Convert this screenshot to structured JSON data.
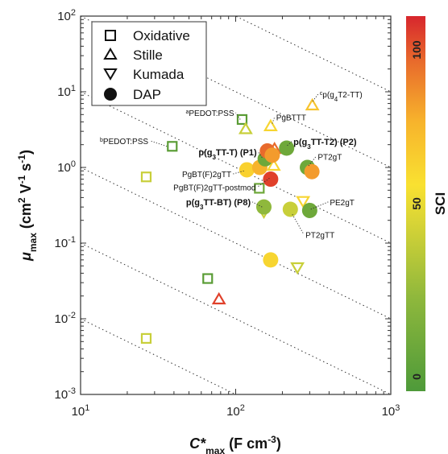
{
  "chart_data": {
    "type": "scatter",
    "x_scale": "log",
    "y_scale": "log",
    "xlim": [
      10,
      1000
    ],
    "ylim": [
      0.001,
      100
    ],
    "xlabel_parts": {
      "sym": "C*",
      "sub": "max",
      "rest": " (F cm",
      "sup": "-3",
      "close": ")"
    },
    "ylabel_parts": {
      "sym": "μ",
      "sub": "max",
      "rest": " (cm",
      "sup1": "2",
      "mid": " V",
      "sup2": "-1",
      "mid2": " s",
      "sup3": "-1",
      "close": ")"
    },
    "x_ticks": [
      {
        "value": 10,
        "base": "10",
        "exp": "1"
      },
      {
        "value": 100,
        "base": "10",
        "exp": "2"
      },
      {
        "value": 1000,
        "base": "10",
        "exp": "3"
      }
    ],
    "y_ticks": [
      {
        "value": 0.001,
        "base": "10",
        "exp": "-3"
      },
      {
        "value": 0.01,
        "base": "10",
        "exp": "-2"
      },
      {
        "value": 0.1,
        "base": "10",
        "exp": "-1"
      },
      {
        "value": 1,
        "base": "10",
        "exp": "0"
      },
      {
        "value": 10,
        "base": "10",
        "exp": "1"
      },
      {
        "value": 100,
        "base": "10",
        "exp": "2"
      }
    ],
    "grid": false,
    "legend_placement": "top-left",
    "legend": [
      {
        "marker": "square",
        "label": "Oxidative"
      },
      {
        "marker": "triangle-up",
        "label": "Stille"
      },
      {
        "marker": "triangle-down",
        "label": "Kumada"
      },
      {
        "marker": "circle",
        "label": "DAP"
      }
    ],
    "colorbar": {
      "label": "SCI",
      "range": [
        0,
        100
      ],
      "ticks": [
        "0",
        "50",
        "100"
      ],
      "colors": [
        "#d7262d",
        "#e86a2c",
        "#f7b32c",
        "#f9e131",
        "#c8cf3a",
        "#7cb342",
        "#4e9a3a"
      ]
    },
    "guide_lines": {
      "style": "dotted",
      "products": [
        0.1,
        1,
        10,
        100,
        1000,
        10000
      ]
    },
    "points": [
      {
        "marker": "square",
        "x": 26.5,
        "y": 0.0055,
        "color": "#c8cf3a"
      },
      {
        "marker": "square",
        "x": 66,
        "y": 0.034,
        "color": "#5a9c35"
      },
      {
        "marker": "square",
        "x": 26.5,
        "y": 0.75,
        "color": "#c8cf3a"
      },
      {
        "marker": "square",
        "x": 39,
        "y": 1.9,
        "color": "#5a9c35"
      },
      {
        "marker": "square",
        "x": 110,
        "y": 4.3,
        "color": "#5a9c35"
      },
      {
        "marker": "square",
        "x": 142,
        "y": 0.53,
        "color": "#6ea83a"
      },
      {
        "marker": "triangle-up",
        "x": 78,
        "y": 0.018,
        "color": "#e0402a"
      },
      {
        "marker": "triangle-up",
        "x": 116,
        "y": 3.2,
        "color": "#c8cf3a"
      },
      {
        "marker": "triangle-up",
        "x": 168,
        "y": 3.5,
        "color": "#f7d531"
      },
      {
        "marker": "triangle-up",
        "x": 178,
        "y": 1.75,
        "color": "#e86a2c"
      },
      {
        "marker": "triangle-up",
        "x": 176,
        "y": 1.05,
        "color": "#f7d531"
      },
      {
        "marker": "triangle-up",
        "x": 312,
        "y": 6.6,
        "color": "#f7c42f"
      },
      {
        "marker": "triangle-down",
        "x": 272,
        "y": 0.36,
        "color": "#f7d531"
      },
      {
        "marker": "triangle-down",
        "x": 250,
        "y": 0.048,
        "color": "#c8cf3a"
      },
      {
        "marker": "triangle-down",
        "x": 152,
        "y": 0.26,
        "color": "#c8cf3a"
      },
      {
        "marker": "circle",
        "x": 118,
        "y": 0.93,
        "color": "#f9d12f"
      },
      {
        "marker": "circle",
        "x": 143,
        "y": 1.0,
        "color": "#f7b32c"
      },
      {
        "marker": "circle",
        "x": 155,
        "y": 1.3,
        "color": "#6ea83a"
      },
      {
        "marker": "circle",
        "x": 160,
        "y": 1.65,
        "color": "#e86a2c"
      },
      {
        "marker": "circle",
        "x": 168,
        "y": 0.7,
        "color": "#e0402a"
      },
      {
        "marker": "circle",
        "x": 172,
        "y": 1.45,
        "color": "#f39b2d"
      },
      {
        "marker": "circle",
        "x": 213,
        "y": 1.8,
        "color": "#6ea83a"
      },
      {
        "marker": "circle",
        "x": 290,
        "y": 1.0,
        "color": "#6ea83a"
      },
      {
        "marker": "circle",
        "x": 310,
        "y": 0.88,
        "color": "#f39b2d"
      },
      {
        "marker": "circle",
        "x": 152,
        "y": 0.3,
        "color": "#8fb83c"
      },
      {
        "marker": "circle",
        "x": 225,
        "y": 0.28,
        "color": "#c8cf3a"
      },
      {
        "marker": "circle",
        "x": 300,
        "y": 0.27,
        "color": "#6ea83a"
      },
      {
        "marker": "circle",
        "x": 168,
        "y": 0.06,
        "color": "#f7d531"
      }
    ],
    "annotations": [
      {
        "id": "ann-c-p-g4t2tt",
        "pre_sup": "c",
        "text": "p(g",
        "sub": "4",
        "post": "T2-TT)",
        "bold": false,
        "x": 314,
        "y": 7.5,
        "lx": 340,
        "ly": 9.3,
        "anchor": "start"
      },
      {
        "id": "ann-a-pedotpss",
        "pre_sup": "a",
        "text": "PEDOT:PSS",
        "bold": false,
        "x": 107,
        "y": 4.3,
        "lx": 100,
        "ly": 5.3,
        "anchor": "end"
      },
      {
        "id": "ann-pgbttt",
        "text": "PgBTTT",
        "bold": false,
        "x": 172,
        "y": 3.8,
        "lx": 178,
        "ly": 4.6,
        "anchor": "start"
      },
      {
        "id": "ann-b-pedotpss",
        "pre_sup": "b",
        "text": "PEDOT:PSS",
        "bold": false,
        "x": 36,
        "y": 1.9,
        "lx": 28,
        "ly": 2.25,
        "anchor": "end"
      },
      {
        "id": "ann-p-g3tt-t-p1",
        "text": "p(g",
        "sub": "3",
        "post": "TT-T) (P1)",
        "bold": true,
        "x": 148,
        "y": 1.35,
        "lx": 140,
        "ly": 1.6,
        "anchor": "end"
      },
      {
        "id": "ann-p-g3tt-t2-p2",
        "text": "p(g",
        "sub": "3",
        "post": "TT-T2) (P2)",
        "bold": true,
        "x": 215,
        "y": 1.95,
        "lx": 230,
        "ly": 2.2,
        "anchor": "start"
      },
      {
        "id": "ann-pgbt-f-2gtt",
        "text": "PgBT(F)2gTT",
        "bold": false,
        "x": 113,
        "y": 0.9,
        "lx": 96,
        "ly": 0.82,
        "anchor": "end"
      },
      {
        "id": "ann-pt2gt",
        "text": "PT2gT",
        "bold": false,
        "x": 295,
        "y": 1.05,
        "lx": 330,
        "ly": 1.4,
        "anchor": "start"
      },
      {
        "id": "ann-pgbt-f-2gtt-postmod",
        "text": "PgBT(F)2gTT-postmod",
        "bold": false,
        "x": 165,
        "y": 0.72,
        "lx": 138,
        "ly": 0.55,
        "anchor": "end"
      },
      {
        "id": "ann-p-g3tt-bt-p8",
        "text": "p(g",
        "sub": "3",
        "post": "TT-BT) (P8)",
        "bold": true,
        "x": 148,
        "y": 0.3,
        "lx": 128,
        "ly": 0.35,
        "anchor": "end"
      },
      {
        "id": "ann-pe2gt",
        "text": "PE2gT",
        "bold": false,
        "x": 305,
        "y": 0.28,
        "lx": 395,
        "ly": 0.35,
        "anchor": "start"
      },
      {
        "id": "ann-pt2gtt",
        "text": "PT2gTT",
        "bold": false,
        "x": 232,
        "y": 0.24,
        "lx": 275,
        "ly": 0.13,
        "anchor": "start"
      }
    ]
  }
}
